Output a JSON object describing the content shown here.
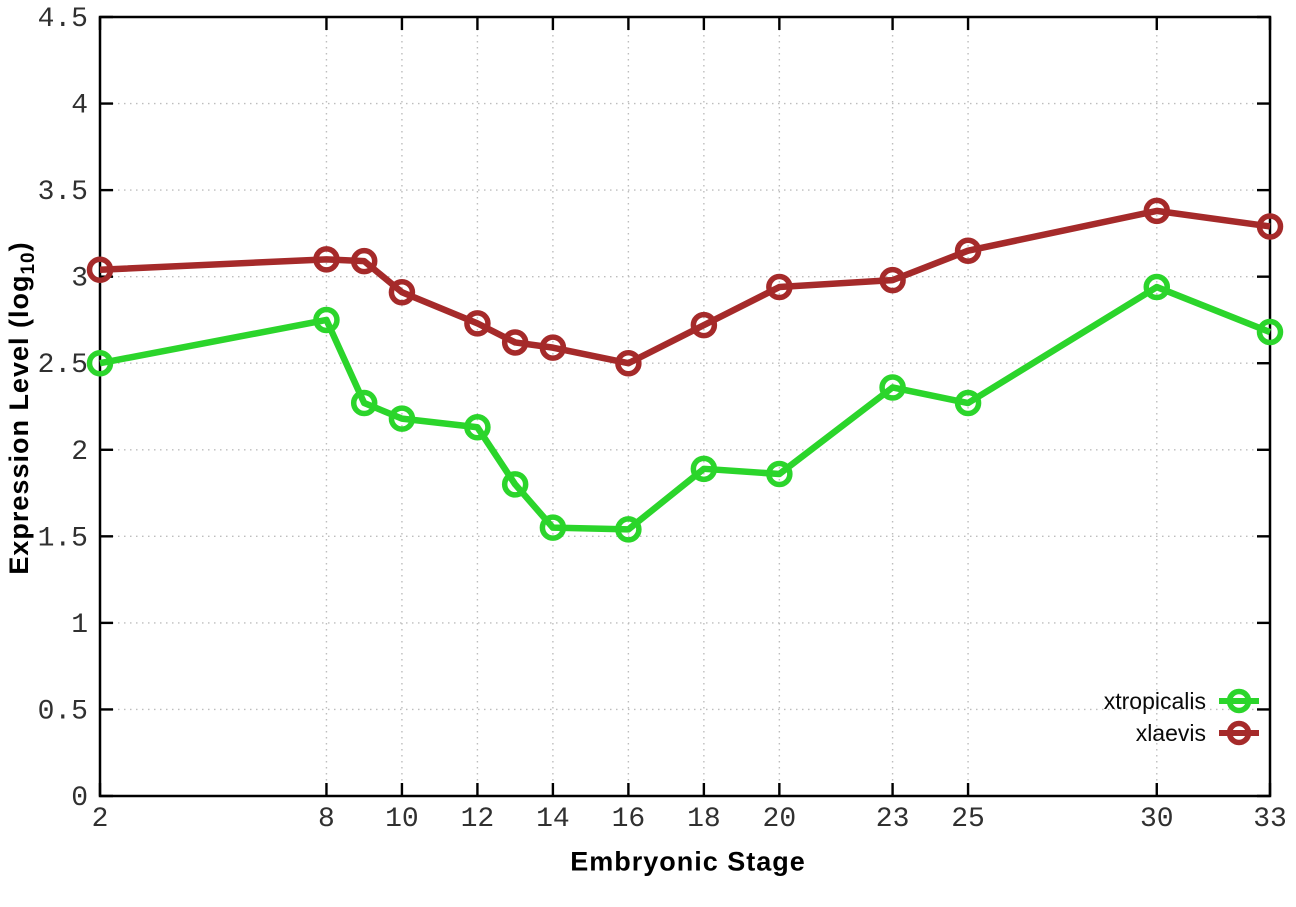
{
  "chart_data": {
    "type": "line",
    "title": "",
    "xlabel": "Embryonic Stage",
    "ylabel": {
      "prefix": "Expression Level (log",
      "sub": "10",
      "suffix": ")"
    },
    "x": [
      2,
      8,
      9,
      10,
      12,
      13,
      14,
      16,
      18,
      20,
      23,
      25,
      30,
      33
    ],
    "series": [
      {
        "name": "xtropicalis",
        "color": "#2bd52b",
        "marker": "open-circle",
        "values": [
          2.5,
          2.75,
          2.27,
          2.18,
          2.13,
          1.8,
          1.55,
          1.54,
          1.89,
          1.86,
          2.36,
          2.27,
          2.94,
          2.68
        ]
      },
      {
        "name": "xlaevis",
        "color": "#a52a2a",
        "marker": "open-circle",
        "values": [
          3.04,
          3.1,
          3.09,
          2.91,
          2.73,
          2.62,
          2.59,
          2.5,
          2.72,
          2.94,
          2.98,
          3.15,
          3.38,
          3.29
        ]
      }
    ],
    "x_ticks": [
      2,
      8,
      10,
      12,
      14,
      16,
      18,
      20,
      23,
      25,
      30,
      33
    ],
    "y_ticks": [
      0,
      0.5,
      1,
      1.5,
      2,
      2.5,
      3,
      3.5,
      4,
      4.5
    ],
    "xlim": [
      2,
      33
    ],
    "ylim": [
      0,
      4.5
    ],
    "grid": true,
    "legend_position": "inside-bottom-right",
    "colors": {
      "background": "#ffffff",
      "border": "#000000",
      "grid": "#bdbdbd",
      "tick_label": "#303030"
    }
  }
}
